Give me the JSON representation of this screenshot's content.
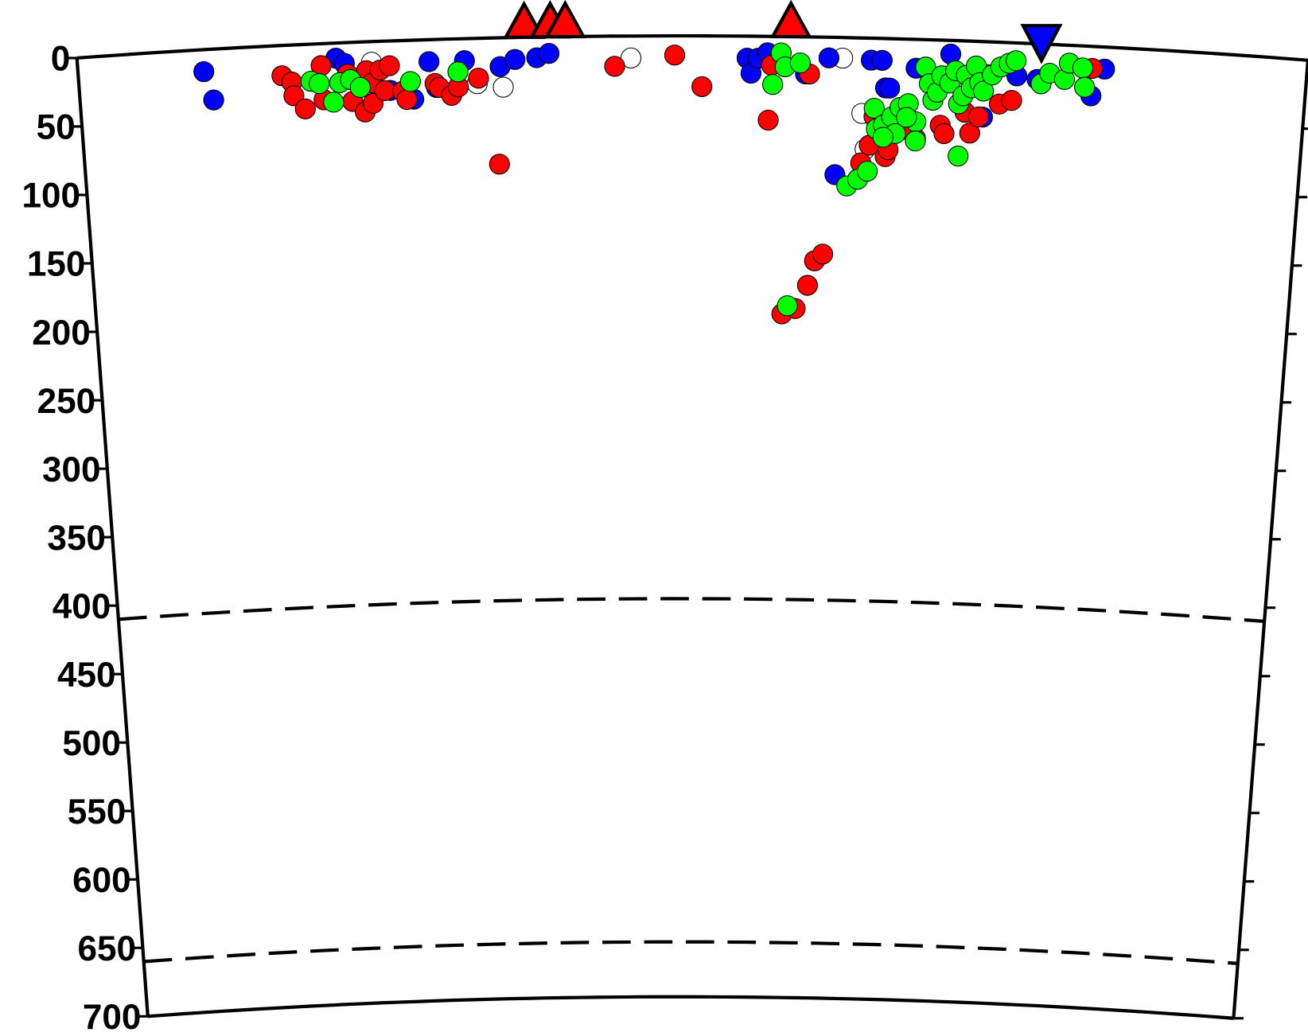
{
  "chart_data": {
    "type": "scatter",
    "title": "",
    "xlabel": "",
    "ylabel": "",
    "y_axis": "depth (km), increasing downward",
    "ylim": [
      0,
      700
    ],
    "yticks": [
      0,
      50,
      100,
      150,
      200,
      250,
      300,
      350,
      400,
      450,
      500,
      550,
      600,
      650,
      700
    ],
    "profile_length_km": 900,
    "discontinuities_km": [
      410,
      660
    ],
    "grid": false,
    "legend": "none",
    "colors": {
      "blue": "#0000ff",
      "red": "#ff0000",
      "green": "#00ff00",
      "open": "#ffffff",
      "outline": "#000000"
    },
    "series": [
      {
        "color_key": "open",
        "points": [
          [
            215,
            15
          ],
          [
            292,
            33
          ],
          [
            311,
            36
          ],
          [
            405,
            16
          ],
          [
            560,
            15
          ],
          [
            575,
            55
          ],
          [
            578,
            81
          ]
        ]
      },
      {
        "color_key": "blue",
        "points": [
          [
            92,
            16
          ],
          [
            98,
            37
          ],
          [
            189,
            11
          ],
          [
            195,
            15
          ],
          [
            228,
            36
          ],
          [
            245,
            43
          ],
          [
            257,
            16
          ],
          [
            262,
            35
          ],
          [
            283,
            16
          ],
          [
            309,
            21
          ],
          [
            320,
            16
          ],
          [
            336,
            15
          ],
          [
            345,
            12
          ],
          [
            490,
            16
          ],
          [
            493,
            27
          ],
          [
            498,
            16
          ],
          [
            505,
            12
          ],
          [
            533,
            27
          ],
          [
            550,
            15
          ],
          [
            556,
            100
          ],
          [
            581,
            16
          ],
          [
            589,
            16
          ],
          [
            592,
            36
          ],
          [
            595,
            36
          ],
          [
            614,
            21
          ],
          [
            639,
            10
          ],
          [
            664,
            55
          ],
          [
            688,
            24
          ],
          [
            703,
            26
          ],
          [
            743,
            36
          ],
          [
            752,
            16
          ]
        ]
      },
      {
        "color_key": "red",
        "points": [
          [
            149,
            22
          ],
          [
            156,
            27
          ],
          [
            157,
            37
          ],
          [
            165,
            47
          ],
          [
            178,
            16
          ],
          [
            179,
            41
          ],
          [
            197,
            23
          ],
          [
            200,
            43
          ],
          [
            209,
            51
          ],
          [
            211,
            21
          ],
          [
            215,
            30
          ],
          [
            215,
            45
          ],
          [
            221,
            21
          ],
          [
            224,
            36
          ],
          [
            228,
            18
          ],
          [
            237,
            37
          ],
          [
            240,
            43
          ],
          [
            261,
            32
          ],
          [
            264,
            35
          ],
          [
            273,
            41
          ],
          [
            278,
            35
          ],
          [
            293,
            29
          ],
          [
            307,
            92
          ],
          [
            393,
            22
          ],
          [
            437,
            14
          ],
          [
            457,
            37
          ],
          [
            506,
            61
          ],
          [
            508,
            21
          ],
          [
            536,
            27
          ],
          [
            542,
            163
          ],
          [
            548,
            158
          ],
          [
            537,
            181
          ],
          [
            518,
            202
          ],
          [
            528,
            198
          ],
          [
            575,
            91
          ],
          [
            581,
            78
          ],
          [
            593,
            86
          ],
          [
            595,
            81
          ],
          [
            615,
            72
          ],
          [
            633,
            62
          ],
          [
            636,
            68
          ],
          [
            651,
            52
          ],
          [
            655,
            67
          ],
          [
            661,
            55
          ],
          [
            667,
            24
          ],
          [
            676,
            45
          ],
          [
            685,
            42
          ],
          [
            743,
            16
          ],
          [
            584,
            57
          ],
          [
            609,
            66
          ]
        ]
      },
      {
        "color_key": "green",
        "points": [
          [
            170,
            27
          ],
          [
            176,
            29
          ],
          [
            186,
            43
          ],
          [
            191,
            29
          ],
          [
            199,
            27
          ],
          [
            206,
            33
          ],
          [
            243,
            30
          ],
          [
            278,
            24
          ],
          [
            509,
            35
          ],
          [
            515,
            12
          ],
          [
            518,
            22
          ],
          [
            529,
            19
          ],
          [
            522,
            196
          ],
          [
            565,
            108
          ],
          [
            573,
            103
          ],
          [
            580,
            97
          ],
          [
            584,
            51
          ],
          [
            586,
            66
          ],
          [
            591,
            63
          ],
          [
            597,
            57
          ],
          [
            603,
            50
          ],
          [
            609,
            47
          ],
          [
            615,
            60
          ],
          [
            621,
            20
          ],
          [
            624,
            32
          ],
          [
            627,
            44
          ],
          [
            630,
            38
          ],
          [
            633,
            26
          ],
          [
            639,
            31
          ],
          [
            643,
            22
          ],
          [
            646,
            46
          ],
          [
            649,
            40
          ],
          [
            651,
            25
          ],
          [
            655,
            34
          ],
          [
            658,
            18
          ],
          [
            661,
            30
          ],
          [
            664,
            36
          ],
          [
            670,
            24
          ],
          [
            676,
            18
          ],
          [
            682,
            15
          ],
          [
            687,
            13
          ],
          [
            600,
            69
          ],
          [
            615,
            74
          ],
          [
            647,
            84
          ],
          [
            706,
            29
          ],
          [
            712,
            21
          ],
          [
            723,
            25
          ],
          [
            726,
            13
          ],
          [
            736,
            16
          ],
          [
            738,
            30
          ],
          [
            591,
            72
          ],
          [
            608,
            57
          ]
        ]
      }
    ],
    "stations": [
      {
        "symbol": "triangle-up",
        "color": "#ff0000",
        "distance": 327
      },
      {
        "symbol": "triangle-up",
        "color": "#ff0000",
        "distance": 346
      },
      {
        "symbol": "triangle-up",
        "color": "#ff0000",
        "distance": 357
      },
      {
        "symbol": "triangle-up",
        "color": "#ff0000",
        "distance": 522
      },
      {
        "symbol": "triangle-down",
        "color": "#0000ff",
        "distance": 705
      }
    ]
  }
}
